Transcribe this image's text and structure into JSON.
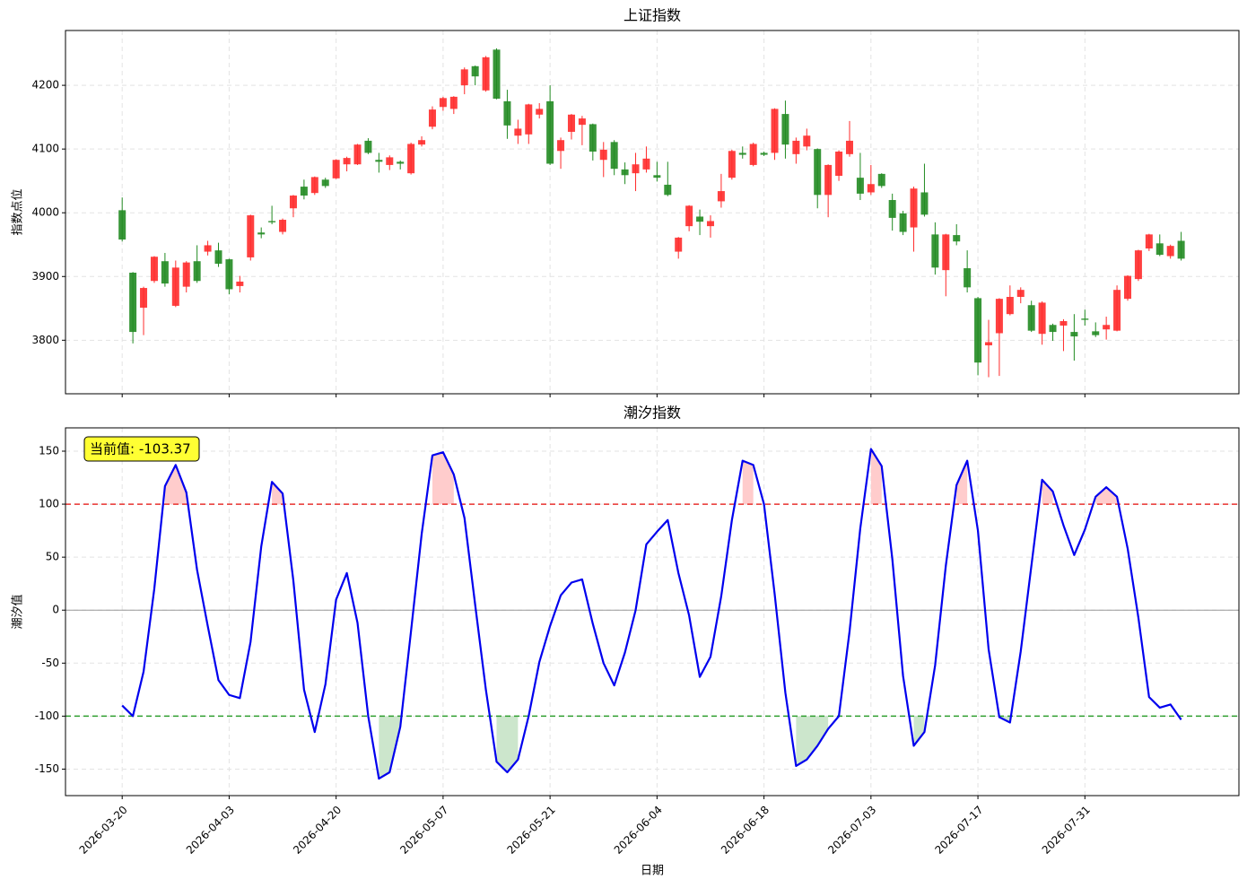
{
  "chart_data": [
    {
      "type": "candlestick",
      "title": "上证指数",
      "ylabel": "指数点位",
      "up_color": "#ff2b2b",
      "down_color": "#228b22",
      "ylim": [
        3716,
        4286
      ],
      "yticks": [
        3800,
        3900,
        4000,
        4100,
        4200
      ],
      "grid": true,
      "open": [
        4004,
        3906,
        3851,
        3893,
        3924,
        3854,
        3884,
        3924,
        3939,
        3941,
        3927,
        3885,
        3930,
        3969,
        3987,
        3970,
        4007,
        4041,
        4031,
        4052,
        4054,
        4076,
        4076,
        4113,
        4083,
        4075,
        4080,
        4062,
        4107,
        4135,
        4166,
        4163,
        4200,
        4230,
        4192,
        4256,
        4175,
        4121,
        4123,
        4154,
        4175,
        4097,
        4127,
        4138,
        4139,
        4083,
        4111,
        4068,
        4062,
        4068,
        4059,
        4044,
        3939,
        3979,
        3994,
        3979,
        4018,
        4055,
        4094,
        4075,
        4094,
        4094,
        4155,
        4092,
        4104,
        4100,
        4028,
        4058,
        4092,
        4055,
        4032,
        4061,
        4020,
        3999,
        3977,
        4032,
        3966,
        3910,
        3965,
        3913,
        3866,
        3792,
        3811,
        3841,
        3868,
        3855,
        3810,
        3824,
        3823,
        3813,
        3834,
        3814,
        3817,
        3815,
        3865,
        3896,
        3944,
        3952,
        3932,
        3956
      ],
      "high": [
        4024,
        3907,
        3884,
        3932,
        3937,
        3925,
        3924,
        3949,
        3956,
        3953,
        3928,
        3901,
        3997,
        3977,
        4011,
        3991,
        4028,
        4052,
        4057,
        4055,
        4084,
        4088,
        4108,
        4117,
        4094,
        4090,
        4082,
        4110,
        4120,
        4167,
        4182,
        4183,
        4228,
        4231,
        4246,
        4258,
        4193,
        4146,
        4171,
        4172,
        4200,
        4118,
        4155,
        4152,
        4140,
        4111,
        4114,
        4079,
        4094,
        4104,
        4080,
        4080,
        3962,
        4012,
        4005,
        3996,
        4061,
        4099,
        4104,
        4110,
        4096,
        4164,
        4176,
        4118,
        4132,
        4101,
        4076,
        4098,
        4144,
        4094,
        4075,
        4062,
        4030,
        4003,
        4041,
        4077,
        3985,
        3967,
        3982,
        3941,
        3868,
        3832,
        3866,
        3886,
        3883,
        3862,
        3861,
        3826,
        3833,
        3841,
        3848,
        3828,
        3837,
        3886,
        3902,
        3942,
        3967,
        3966,
        3950,
        3970
      ],
      "low": [
        3955,
        3795,
        3808,
        3890,
        3884,
        3852,
        3875,
        3890,
        3933,
        3915,
        3872,
        3875,
        3925,
        3960,
        3982,
        3966,
        3993,
        4021,
        4028,
        4039,
        4053,
        4065,
        4075,
        4092,
        4063,
        4067,
        4068,
        4060,
        4104,
        4131,
        4160,
        4155,
        4186,
        4200,
        4190,
        4178,
        4116,
        4108,
        4108,
        4148,
        4075,
        4069,
        4115,
        4106,
        4082,
        4056,
        4059,
        4045,
        4034,
        4063,
        4049,
        4026,
        3928,
        3971,
        3965,
        3961,
        4008,
        4052,
        4085,
        4073,
        4089,
        4083,
        4085,
        4077,
        4098,
        4007,
        3993,
        4050,
        4088,
        4020,
        4028,
        4039,
        3972,
        3965,
        3939,
        3994,
        3903,
        3869,
        3949,
        3875,
        3745,
        3742,
        3744,
        3839,
        3858,
        3813,
        3793,
        3799,
        3783,
        3768,
        3823,
        3805,
        3801,
        3814,
        3862,
        3893,
        3940,
        3932,
        3928,
        3925
      ],
      "close": [
        3958,
        3813,
        3882,
        3931,
        3889,
        3914,
        3922,
        3893,
        3949,
        3920,
        3880,
        3892,
        3996,
        3966,
        3985,
        3989,
        4027,
        4027,
        4056,
        4042,
        4083,
        4086,
        4107,
        4094,
        4080,
        4087,
        4077,
        4108,
        4114,
        4162,
        4180,
        4182,
        4225,
        4214,
        4244,
        4179,
        4137,
        4132,
        4170,
        4163,
        4077,
        4114,
        4154,
        4148,
        4096,
        4099,
        4069,
        4059,
        4076,
        4085,
        4055,
        4028,
        3961,
        4011,
        3986,
        3987,
        4034,
        4097,
        4091,
        4108,
        4091,
        4163,
        4107,
        4113,
        4121,
        4028,
        4075,
        4096,
        4113,
        4030,
        4045,
        4042,
        3992,
        3970,
        4038,
        3997,
        3914,
        3966,
        3955,
        3883,
        3765,
        3797,
        3865,
        3868,
        3879,
        3815,
        3859,
        3813,
        3830,
        3806,
        3832,
        3808,
        3824,
        3879,
        3901,
        3941,
        3966,
        3934,
        3948,
        3928
      ]
    },
    {
      "type": "line",
      "title": "潮汐指数",
      "ylabel": "潮汐值",
      "xlabel": "日期",
      "color": "#0000ee",
      "annotation": "当前值: -103.37",
      "ylim": [
        -175,
        172
      ],
      "yticks": [
        -150,
        -100,
        -50,
        0,
        50,
        100,
        150
      ],
      "grid": true,
      "lines": [
        {
          "value": 100,
          "color": "#e8322e",
          "dash": true,
          "fill": "above",
          "fill_color": "#ffcccc"
        },
        {
          "value": -100,
          "color": "#2e9e2e",
          "dash": true,
          "fill": "below",
          "fill_color": "#cce6cc"
        },
        {
          "value": 0,
          "color": "#999999",
          "dash": false
        }
      ],
      "categories": [
        "2026-03-20",
        null,
        null,
        null,
        null,
        null,
        null,
        null,
        null,
        null,
        "2026-04-03",
        null,
        null,
        null,
        null,
        null,
        null,
        null,
        null,
        null,
        "2026-04-20",
        null,
        null,
        null,
        null,
        null,
        null,
        null,
        null,
        null,
        "2026-05-07",
        null,
        null,
        null,
        null,
        null,
        null,
        null,
        null,
        null,
        "2026-05-21",
        null,
        null,
        null,
        null,
        null,
        null,
        null,
        null,
        null,
        "2026-06-04",
        null,
        null,
        null,
        null,
        null,
        null,
        null,
        null,
        null,
        "2026-06-18",
        null,
        null,
        null,
        null,
        null,
        null,
        null,
        null,
        null,
        "2026-07-03",
        null,
        null,
        null,
        null,
        null,
        null,
        null,
        null,
        null,
        "2026-07-17",
        null,
        null,
        null,
        null,
        null,
        null,
        null,
        null,
        null,
        "2026-07-31",
        null,
        null,
        null,
        null,
        null,
        null,
        null,
        null,
        null
      ],
      "values": [
        -90,
        -100,
        -58,
        20,
        117,
        137,
        111,
        38,
        -15,
        -66,
        -80,
        -83,
        -30,
        60,
        121,
        110,
        28,
        -75,
        -115,
        -70,
        10,
        35,
        -12,
        -100,
        -159,
        -153,
        -110,
        -20,
        72,
        146,
        149,
        128,
        87,
        5,
        -75,
        -143,
        -153,
        -141,
        -100,
        -49,
        -15,
        14,
        26,
        29,
        -13,
        -50,
        -71,
        -40,
        0,
        62,
        74,
        85,
        35,
        -5,
        -63,
        -44,
        13,
        85,
        141,
        137,
        100,
        15,
        -78,
        -147,
        -141,
        -128,
        -112,
        -100,
        -20,
        77,
        152,
        136,
        48,
        -62,
        -128,
        -115,
        -52,
        42,
        118,
        141,
        75,
        -37,
        -101,
        -106,
        -39,
        42,
        123,
        112,
        80,
        52,
        76,
        107,
        116,
        107,
        58,
        -7,
        -82,
        -92,
        -89,
        -103.37
      ]
    }
  ]
}
